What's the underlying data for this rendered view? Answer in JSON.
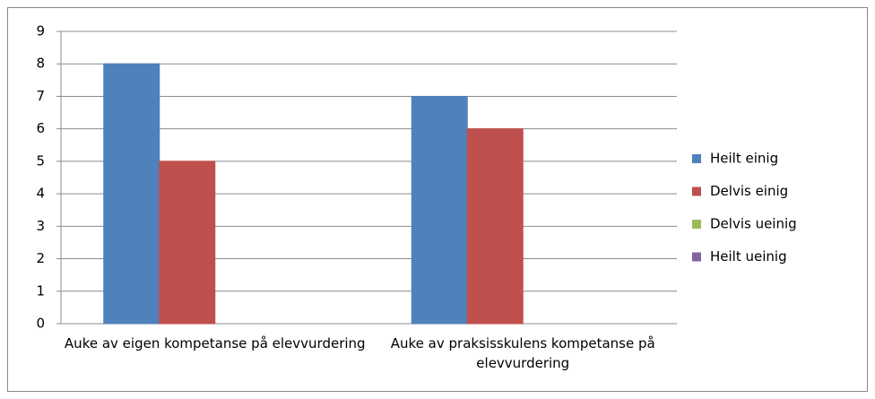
{
  "chart_data": {
    "type": "bar",
    "categories": [
      "Auke av eigen kompetanse på elevvurdering",
      "Auke av praksisskulens kompetanse på elevvurdering"
    ],
    "series": [
      {
        "name": "Heilt einig",
        "color": "#4f81bd",
        "values": [
          8,
          7
        ]
      },
      {
        "name": "Delvis einig",
        "color": "#c0504d",
        "values": [
          5,
          6
        ]
      },
      {
        "name": "Delvis ueinig",
        "color": "#9bbb59",
        "values": [
          0,
          0
        ]
      },
      {
        "name": "Heilt ueinig",
        "color": "#8064a2",
        "values": [
          0,
          0
        ]
      }
    ],
    "ylim": [
      0,
      9
    ],
    "yticks": [
      0,
      1,
      2,
      3,
      4,
      5,
      6,
      7,
      8,
      9
    ],
    "grid": true,
    "legend": "right"
  }
}
